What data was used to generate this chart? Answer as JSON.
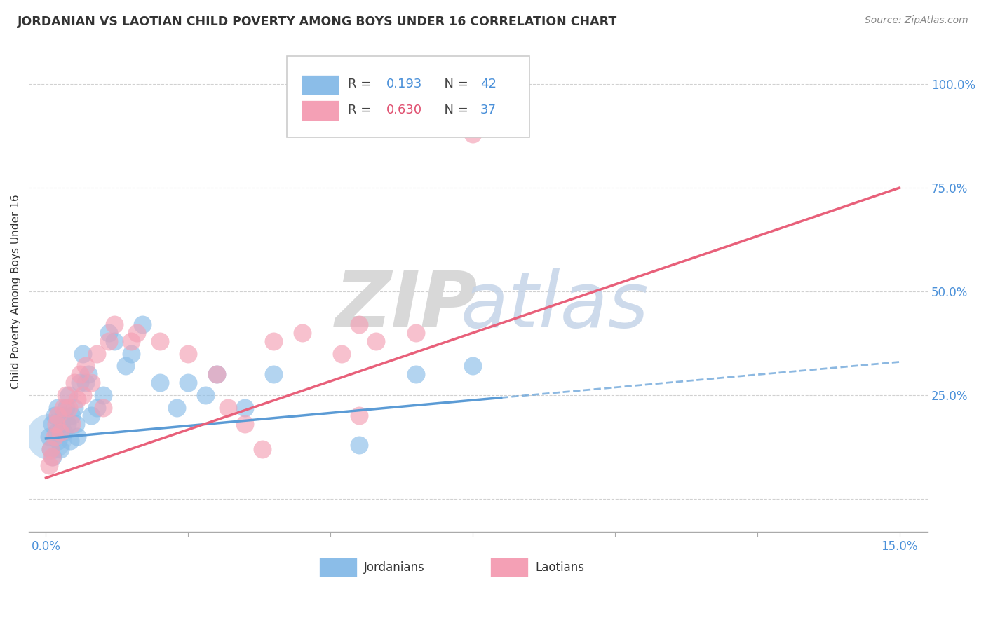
{
  "title": "JORDANIAN VS LAOTIAN CHILD POVERTY AMONG BOYS UNDER 16 CORRELATION CHART",
  "source": "Source: ZipAtlas.com",
  "ylabel": "Child Poverty Among Boys Under 16",
  "xlim": [
    -0.3,
    15.5
  ],
  "ylim": [
    -8,
    108
  ],
  "xtick_positions": [
    0.0,
    2.5,
    5.0,
    7.5,
    10.0,
    12.5,
    15.0
  ],
  "xtick_labels": [
    "0.0%",
    "",
    "",
    "",
    "",
    "",
    "15.0%"
  ],
  "ytick_positions": [
    0,
    25,
    50,
    75,
    100
  ],
  "ytick_labels": [
    "",
    "25.0%",
    "50.0%",
    "75.0%",
    "100.0%"
  ],
  "jordanian_R": 0.193,
  "jordanian_N": 42,
  "laotian_R": 0.63,
  "laotian_N": 37,
  "jordanian_color": "#8BBDE8",
  "laotian_color": "#F4A0B5",
  "jordanian_line_color": "#5B9BD5",
  "laotian_line_color": "#E8607A",
  "jord_line_x0": 0.0,
  "jord_line_y0": 14.5,
  "jord_line_x1": 15.0,
  "jord_line_y1": 33.0,
  "jord_solid_end": 8.0,
  "laot_line_x0": 0.0,
  "laot_line_y0": 5.0,
  "laot_line_x1": 15.0,
  "laot_line_y1": 75.0,
  "jordanian_x": [
    0.05,
    0.08,
    0.1,
    0.12,
    0.15,
    0.18,
    0.2,
    0.22,
    0.25,
    0.28,
    0.3,
    0.32,
    0.35,
    0.38,
    0.4,
    0.42,
    0.45,
    0.5,
    0.52,
    0.55,
    0.6,
    0.65,
    0.7,
    0.75,
    0.8,
    0.9,
    1.0,
    1.1,
    1.2,
    1.4,
    1.5,
    1.7,
    2.0,
    2.3,
    2.5,
    2.8,
    3.0,
    3.5,
    4.0,
    5.5,
    7.5,
    6.5
  ],
  "jordanian_y": [
    15,
    12,
    18,
    10,
    20,
    16,
    22,
    14,
    12,
    18,
    20,
    16,
    22,
    18,
    25,
    14,
    20,
    22,
    18,
    15,
    28,
    35,
    28,
    30,
    20,
    22,
    25,
    40,
    38,
    32,
    35,
    42,
    28,
    22,
    28,
    25,
    30,
    22,
    30,
    13,
    32,
    30
  ],
  "jordanian_large_x": [
    0.05
  ],
  "jordanian_large_y": [
    15
  ],
  "laotian_x": [
    0.05,
    0.08,
    0.1,
    0.15,
    0.18,
    0.2,
    0.25,
    0.3,
    0.35,
    0.4,
    0.45,
    0.5,
    0.55,
    0.6,
    0.65,
    0.7,
    0.8,
    0.9,
    1.0,
    1.1,
    1.2,
    1.5,
    1.6,
    2.0,
    2.5,
    3.0,
    3.2,
    3.5,
    4.0,
    4.5,
    3.8,
    5.5,
    5.8,
    5.5,
    7.5,
    5.2,
    6.5
  ],
  "laotian_y": [
    8,
    12,
    10,
    15,
    18,
    20,
    16,
    22,
    25,
    22,
    18,
    28,
    24,
    30,
    25,
    32,
    28,
    35,
    22,
    38,
    42,
    38,
    40,
    38,
    35,
    30,
    22,
    18,
    38,
    40,
    12,
    42,
    38,
    20,
    88,
    35,
    40
  ],
  "watermark_zip": "ZIP",
  "watermark_atlas": "atlas"
}
